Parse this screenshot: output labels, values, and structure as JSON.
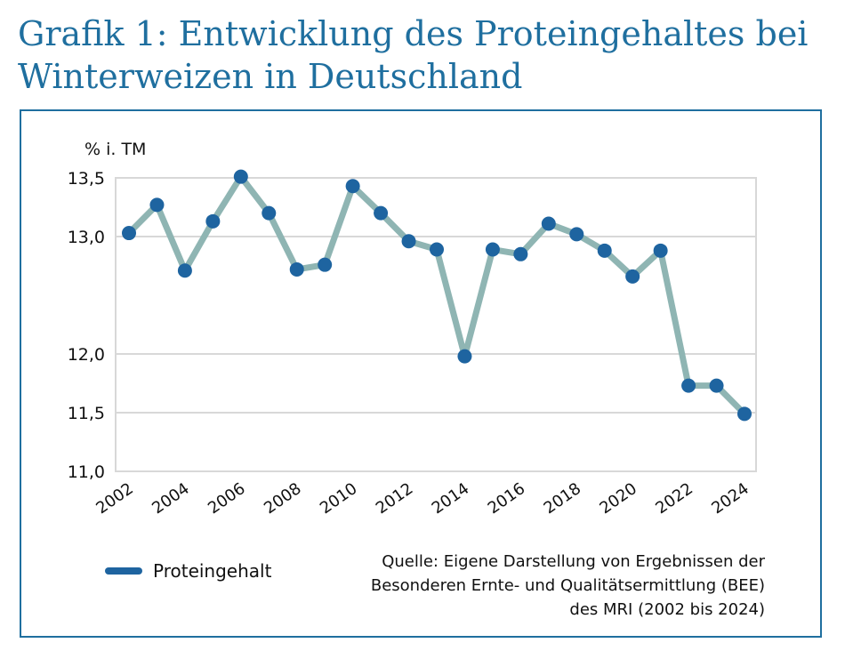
{
  "title": {
    "line1": "Grafik 1: Entwicklung des Proteingehaltes bei",
    "line2": "Winterweizen in Deutschland"
  },
  "chart_data": {
    "type": "line",
    "ylabel": "% i. TM",
    "ylim": [
      11.0,
      13.5
    ],
    "yticks": [
      11.0,
      11.5,
      12.0,
      13.0,
      13.5
    ],
    "ytick_labels": [
      "11,0",
      "11,5",
      "12,0",
      "13,0",
      "13,5"
    ],
    "x": [
      2002,
      2003,
      2004,
      2005,
      2006,
      2007,
      2008,
      2009,
      2010,
      2011,
      2012,
      2013,
      2014,
      2015,
      2016,
      2017,
      2018,
      2019,
      2020,
      2021,
      2022,
      2023,
      2024
    ],
    "xtick_labels": [
      "2002",
      "2004",
      "2006",
      "2008",
      "2010",
      "2012",
      "2014",
      "2016",
      "2018",
      "2020",
      "2022",
      "2024"
    ],
    "series": [
      {
        "name": "Proteingehalt",
        "values": [
          13.03,
          13.27,
          12.71,
          13.13,
          13.51,
          13.2,
          12.72,
          12.76,
          13.43,
          13.2,
          12.96,
          12.89,
          11.98,
          12.89,
          12.85,
          13.11,
          13.02,
          12.88,
          12.66,
          12.88,
          11.73,
          11.73,
          11.49
        ]
      }
    ],
    "line_color": "#8fb5b3",
    "marker_color": "#1e64a0",
    "grid": true
  },
  "legend": {
    "label": "Proteingehalt"
  },
  "source": {
    "line1": "Quelle: Eigene Darstellung von Ergebnissen der",
    "line2": "Besonderen Ernte- und Qualitätsermittlung (BEE)",
    "line3": "des MRI (2002 bis 2024)"
  }
}
